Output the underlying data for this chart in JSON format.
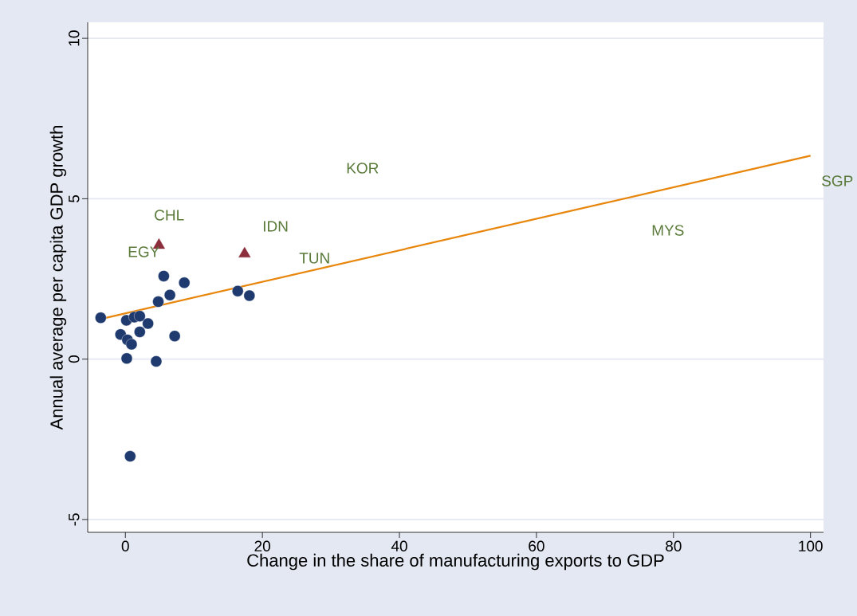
{
  "chart_data": {
    "type": "scatter",
    "xlabel": "Change in the share of manufacturing exports to GDP",
    "ylabel": "Annual average per capita GDP growth",
    "xlim": [
      -5.5,
      101.9
    ],
    "ylim": [
      -5.4,
      10.5
    ],
    "xticks": [
      0,
      20,
      40,
      60,
      80,
      100
    ],
    "yticks": [
      -5,
      0,
      5,
      10
    ],
    "grid": "y",
    "series": [
      {
        "marker": "circle",
        "color": "#1f3a6e",
        "x": [
          -3.6,
          0.15,
          1.3,
          2.1,
          3.3,
          -0.7,
          2.1,
          0.3,
          0.9,
          0.2,
          4.5,
          7.2,
          4.8,
          6.5,
          5.6,
          8.6,
          16.4,
          18.1,
          0.7
        ],
        "values": [
          1.29,
          1.21,
          1.31,
          1.34,
          1.11,
          0.77,
          0.85,
          0.6,
          0.46,
          0.02,
          -0.07,
          0.72,
          1.79,
          2.0,
          2.59,
          2.38,
          2.12,
          1.98,
          -3.03
        ]
      },
      {
        "marker": "triangle",
        "color": "#8b2d3a",
        "x": [
          4.9,
          17.4
        ],
        "values": [
          3.55,
          3.28
        ]
      },
      {
        "type": "line",
        "marker": "none",
        "color": "#e8860c",
        "x": [
          -3.6,
          100
        ],
        "values": [
          1.25,
          6.34
        ]
      }
    ],
    "annotations": [
      "EGY",
      "CHL",
      "IDN",
      "TUN",
      "KOR",
      "MYS",
      "SGP"
    ]
  }
}
